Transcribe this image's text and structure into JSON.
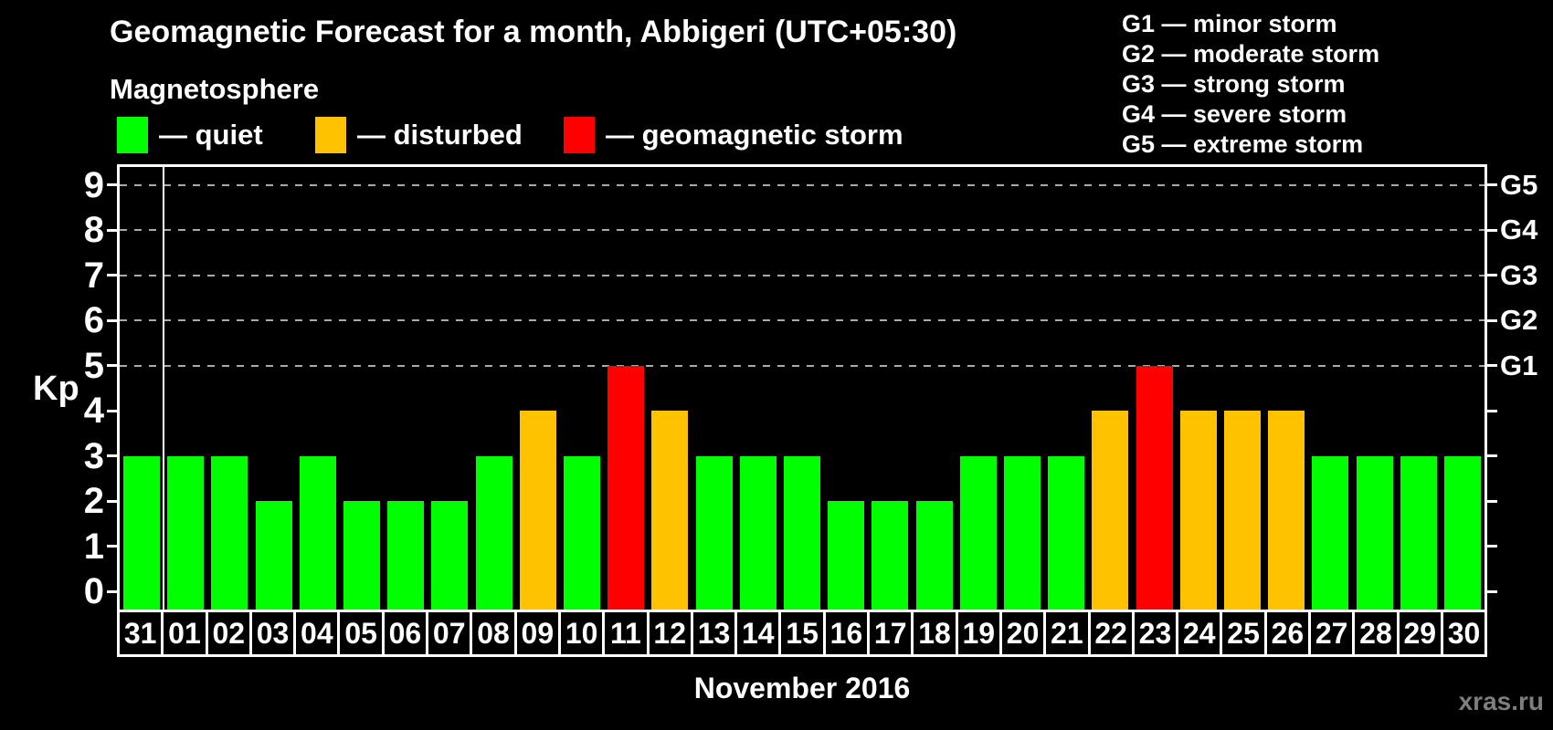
{
  "header": {
    "title": "Geomagnetic Forecast for a month, Abbigeri (UTC+05:30)",
    "subtitle": "Magnetosphere"
  },
  "legend": {
    "items": [
      {
        "name": "quiet",
        "label": "— quiet",
        "color": "#00ff00"
      },
      {
        "name": "disturbed",
        "label": "— disturbed",
        "color": "#ffc200"
      },
      {
        "name": "storm",
        "label": "— geomagnetic storm",
        "color": "#ff0000"
      }
    ]
  },
  "g_legend": {
    "lines": [
      "G1 — minor storm",
      "G2 — moderate storm",
      "G3 — strong storm",
      "G4 — severe storm",
      "G5 — extreme storm"
    ]
  },
  "chart_data": {
    "type": "bar",
    "title": "Geomagnetic Forecast for a month, Abbigeri (UTC+05:30)",
    "ylabel": "Kp",
    "xlabel": "November 2016",
    "ylim": [
      -0.4,
      9.4
    ],
    "yticks": [
      0,
      1,
      2,
      3,
      4,
      5,
      6,
      7,
      8,
      9
    ],
    "gridlines_kp": [
      5,
      6,
      7,
      8,
      9
    ],
    "grid": "dashed horizontal at G-storm levels only",
    "legend_position": "top",
    "right_axis_labels": [
      {
        "text": "G1",
        "kp": 5
      },
      {
        "text": "G2",
        "kp": 6
      },
      {
        "text": "G3",
        "kp": 7
      },
      {
        "text": "G4",
        "kp": 8
      },
      {
        "text": "G5",
        "kp": 9
      }
    ],
    "categories": [
      "31",
      "01",
      "02",
      "03",
      "04",
      "05",
      "06",
      "07",
      "08",
      "09",
      "10",
      "11",
      "12",
      "13",
      "14",
      "15",
      "16",
      "17",
      "18",
      "19",
      "20",
      "21",
      "22",
      "23",
      "24",
      "25",
      "26",
      "27",
      "28",
      "29",
      "30"
    ],
    "values": [
      3,
      3,
      3,
      2,
      3,
      2,
      2,
      2,
      3,
      4,
      3,
      5,
      4,
      3,
      3,
      3,
      2,
      2,
      2,
      3,
      3,
      3,
      4,
      5,
      4,
      4,
      4,
      3,
      3,
      3,
      3
    ],
    "month_separator_after_index": 0,
    "color_rule": {
      "quiet_max_kp": 3,
      "disturbed_kp": 4,
      "storm_min_kp": 5
    },
    "colors": {
      "quiet": "#00ff00",
      "disturbed": "#ffc200",
      "storm": "#ff0000",
      "grid": "#aaaaaa",
      "axis": "#ffffff",
      "background": "#000000"
    }
  },
  "footer": {
    "caption": "November 2016",
    "watermark": "xras.ru"
  }
}
